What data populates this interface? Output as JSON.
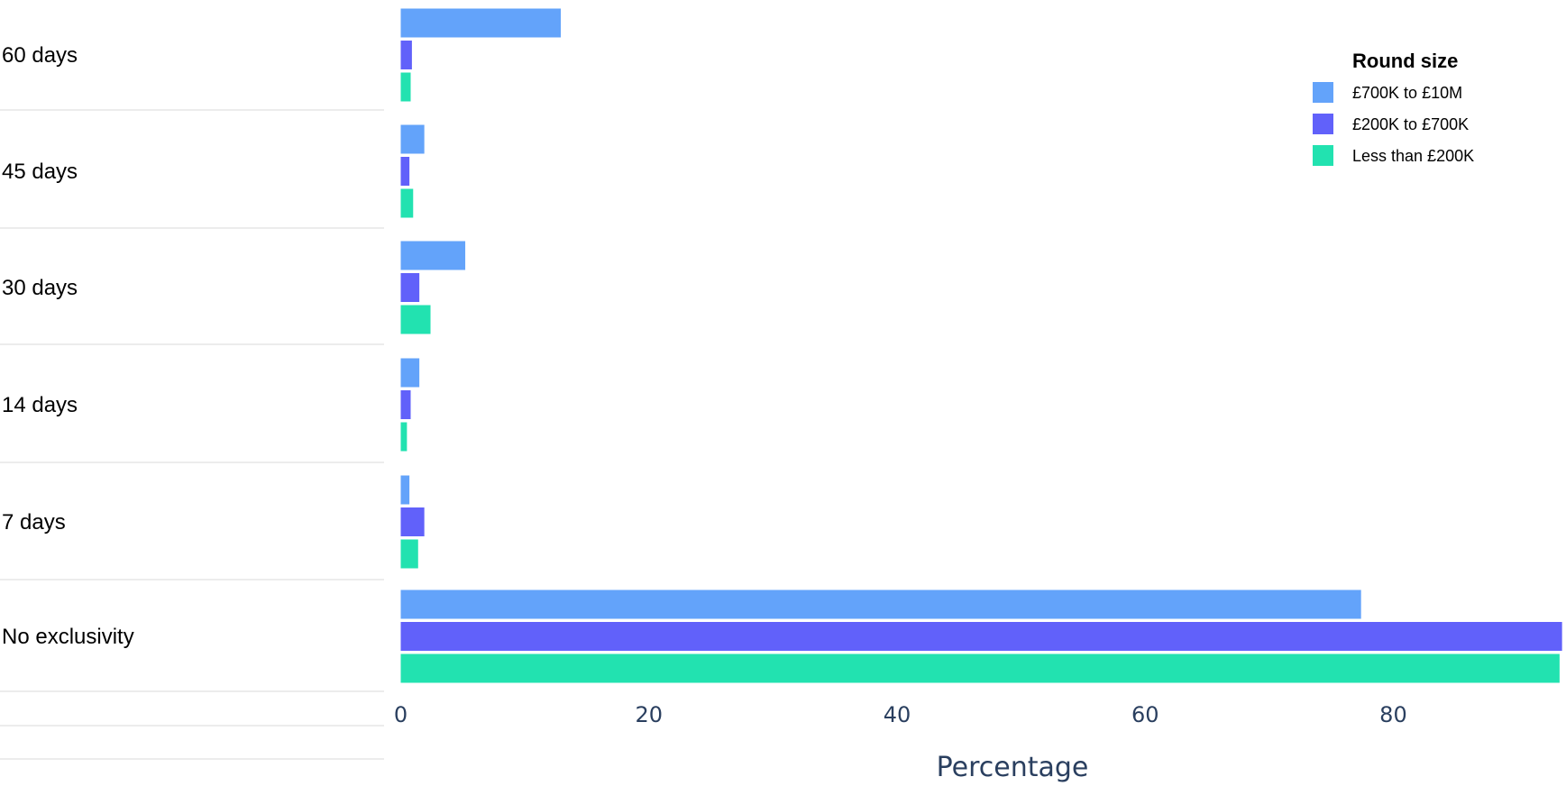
{
  "chart_data": {
    "type": "bar",
    "orientation": "horizontal",
    "categories": [
      "60 days",
      "45 days",
      "30 days",
      "14 days",
      "7 days",
      "No exclusivity"
    ],
    "series": [
      {
        "name": "£700K to £10M",
        "color": "#63a3fa",
        "values": [
          12.9,
          1.9,
          5.2,
          1.5,
          0.7,
          77.4
        ]
      },
      {
        "name": "£200K to £700K",
        "color": "#6161fa",
        "values": [
          0.9,
          0.7,
          1.5,
          0.8,
          1.9,
          93.6
        ]
      },
      {
        "name": "Less than £200K",
        "color": "#22e2b0",
        "values": [
          0.8,
          1.0,
          2.4,
          0.5,
          1.4,
          93.4
        ]
      }
    ],
    "xlabel": "Percentage",
    "ylabel": "",
    "xticks": [
      0,
      20,
      40,
      60,
      80
    ],
    "xlim": [
      0,
      93.7
    ],
    "legend": {
      "title": "Round size",
      "placement": "top-right"
    },
    "grid": false
  }
}
